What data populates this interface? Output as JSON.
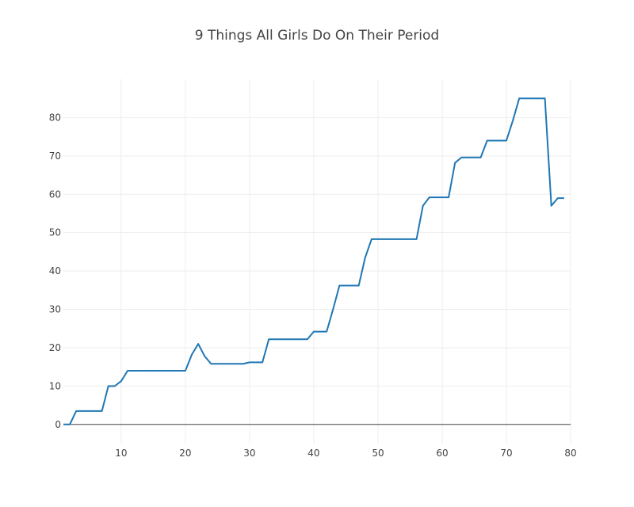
{
  "chart_data": {
    "type": "line",
    "title": "9 Things All Girls Do On Their Period",
    "xlabel": "",
    "ylabel": "",
    "xlim": [
      1,
      80
    ],
    "ylim": [
      -5,
      90
    ],
    "x_ticks": [
      10,
      20,
      30,
      40,
      50,
      60,
      70,
      80
    ],
    "y_ticks": [
      0,
      10,
      20,
      30,
      40,
      50,
      60,
      70,
      80
    ],
    "grid": true,
    "legend": false,
    "series": [
      {
        "color": "#1f77b4",
        "x": [
          1,
          2,
          3,
          4,
          5,
          6,
          7,
          8,
          9,
          10,
          11,
          12,
          13,
          14,
          15,
          16,
          17,
          18,
          19,
          20,
          21,
          22,
          23,
          24,
          25,
          26,
          27,
          28,
          29,
          30,
          31,
          32,
          33,
          34,
          35,
          36,
          37,
          38,
          39,
          40,
          41,
          42,
          43,
          44,
          45,
          46,
          47,
          48,
          49,
          50,
          51,
          52,
          53,
          54,
          55,
          56,
          57,
          58,
          59,
          60,
          61,
          62,
          63,
          64,
          65,
          66,
          67,
          68,
          69,
          70,
          71,
          72,
          73,
          74,
          75,
          76,
          77,
          78,
          79
        ],
        "y": [
          0,
          0,
          3.5,
          3.5,
          3.5,
          3.5,
          3.5,
          10,
          10,
          11.3,
          14,
          14,
          14,
          14,
          14,
          14,
          14,
          14,
          14,
          14,
          18.2,
          21,
          17.8,
          15.8,
          15.8,
          15.8,
          15.8,
          15.8,
          15.8,
          16.2,
          16.2,
          16.2,
          22.2,
          22.2,
          22.2,
          22.2,
          22.2,
          22.2,
          22.2,
          24.2,
          24.2,
          24.2,
          30,
          36.2,
          36.2,
          36.2,
          36.2,
          43.5,
          48.3,
          48.3,
          48.3,
          48.3,
          48.3,
          48.3,
          48.3,
          48.3,
          57,
          59.2,
          59.2,
          59.2,
          59.2,
          68.2,
          69.6,
          69.6,
          69.6,
          69.6,
          74,
          74,
          74,
          74,
          79.2,
          85,
          85,
          85,
          85,
          85,
          57,
          59,
          59
        ]
      }
    ]
  }
}
